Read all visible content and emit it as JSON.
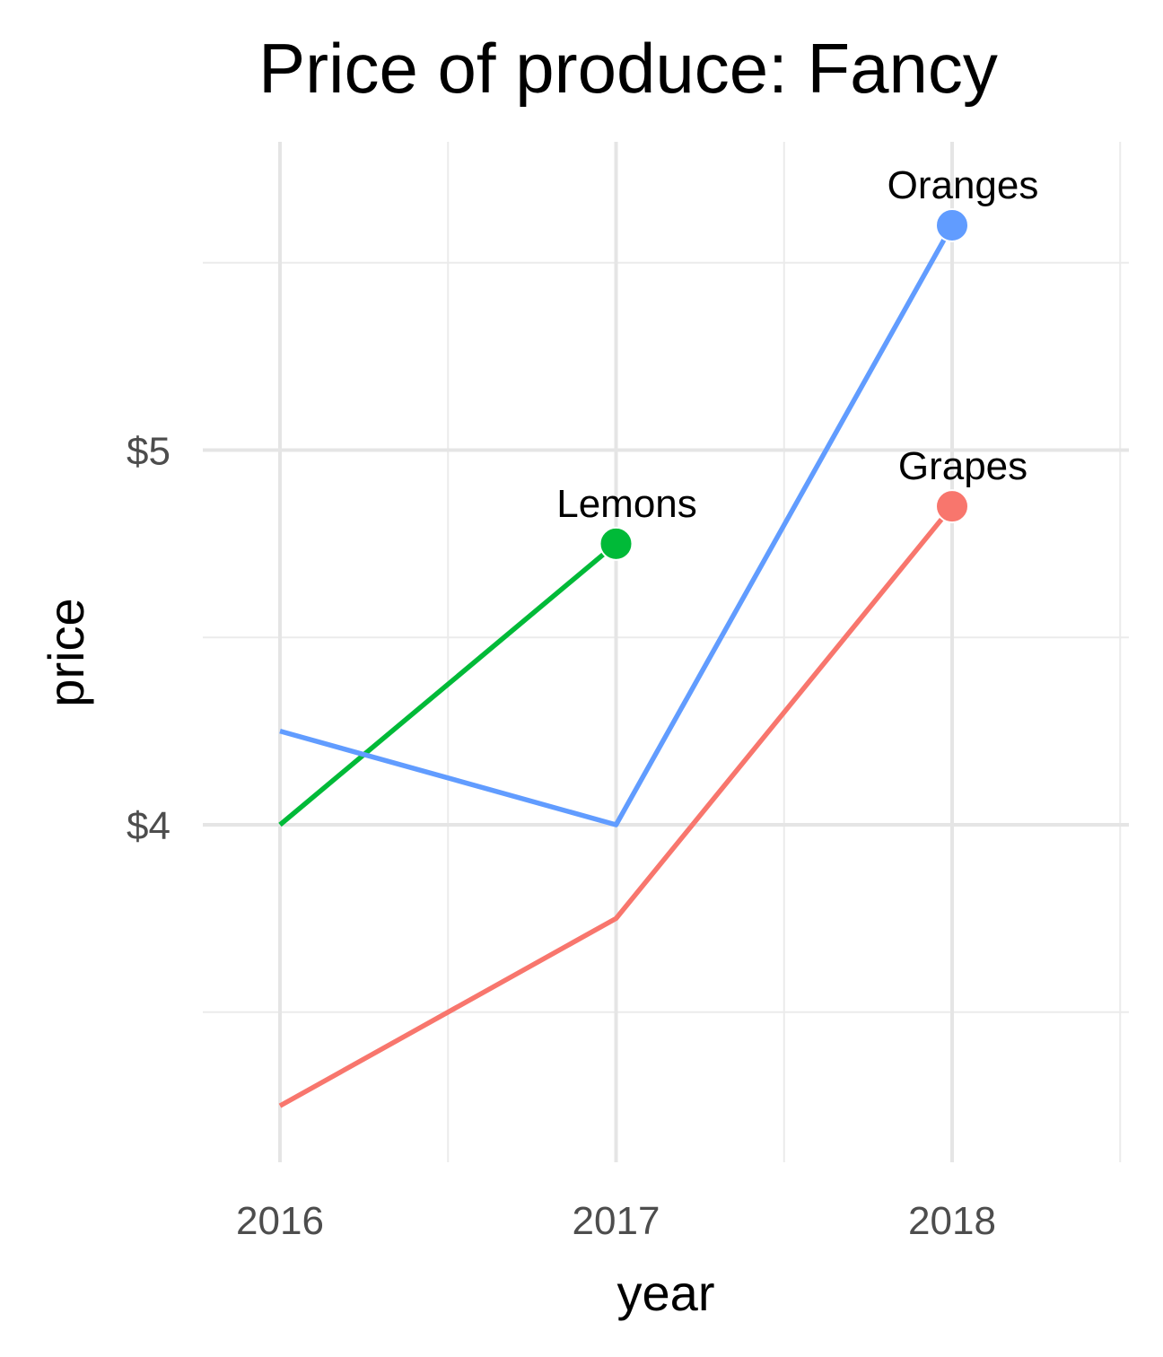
{
  "chart_data": {
    "type": "line",
    "title": "Price of produce: Fancy",
    "xlabel": "year",
    "ylabel": "price",
    "x": [
      2016,
      2017,
      2018
    ],
    "x_ticks": [
      "2016",
      "2017",
      "2018"
    ],
    "y_ticks": [
      {
        "value": 4,
        "label": "$4"
      },
      {
        "value": 5,
        "label": "$5"
      }
    ],
    "xlim": [
      2015.75,
      2018.5
    ],
    "ylim": [
      3.1,
      5.9
    ],
    "grid": true,
    "legend": "none (direct labels at line ends)",
    "series": [
      {
        "name": "Grapes",
        "color": "#F8766D",
        "values": [
          3.25,
          3.75,
          4.85
        ]
      },
      {
        "name": "Lemons",
        "color": "#00BA38",
        "values": [
          4.0,
          4.75,
          null
        ]
      },
      {
        "name": "Oranges",
        "color": "#619CFF",
        "values": [
          4.25,
          4.0,
          5.6
        ]
      }
    ]
  }
}
